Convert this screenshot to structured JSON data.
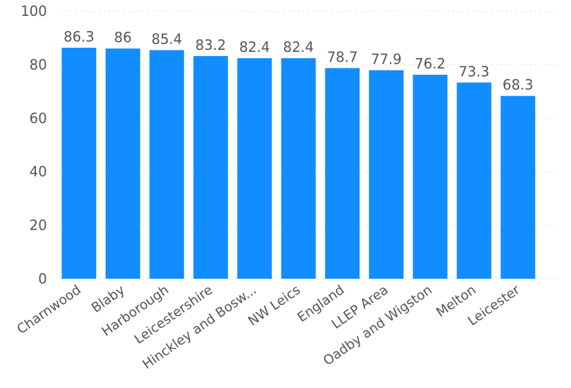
{
  "chart_data": {
    "type": "bar",
    "categories": [
      "Charnwood",
      "Blaby",
      "Harborough",
      "Leicestershire",
      "Hinckley and Bosw...",
      "NW Leics",
      "England",
      "LLEP Area",
      "Oadby and Wigston",
      "Melton",
      "Leicester"
    ],
    "values": [
      86.3,
      86,
      85.4,
      83.2,
      82.4,
      82.4,
      78.7,
      77.9,
      76.2,
      73.3,
      68.3
    ],
    "value_labels": [
      "86.3",
      "86",
      "85.4",
      "83.2",
      "82.4",
      "82.4",
      "78.7",
      "77.9",
      "76.2",
      "73.3",
      "68.3"
    ],
    "yticks": [
      0,
      20,
      40,
      60,
      80,
      100
    ],
    "ytick_labels": [
      "0",
      "20",
      "40",
      "60",
      "80",
      "100"
    ],
    "ylim": [
      0,
      100
    ],
    "grid": true,
    "bar_color": "#118DFF"
  }
}
